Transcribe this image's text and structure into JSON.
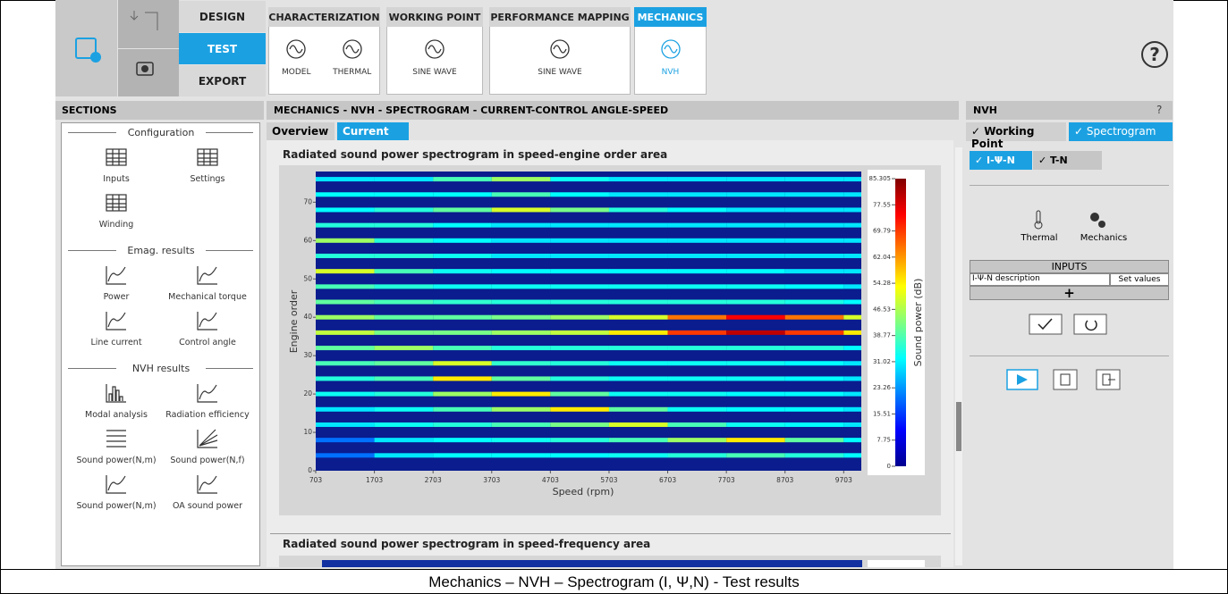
{
  "toolbar": {
    "modes": [
      "DESIGN",
      "TEST",
      "EXPORT"
    ],
    "tabs": [
      {
        "title": "CHARACTERIZATION",
        "items": [
          "MODEL",
          "THERMAL"
        ]
      },
      {
        "title": "WORKING POINT",
        "items": [
          "SINE WAVE"
        ]
      },
      {
        "title": "PERFORMANCE MAPPING",
        "items": [
          "SINE WAVE"
        ]
      },
      {
        "title": "MECHANICS",
        "items": [
          "NVH"
        ]
      }
    ],
    "help": "?"
  },
  "sections": {
    "title": "SECTIONS",
    "groups": [
      {
        "title": "Configuration",
        "items": [
          "Inputs",
          "Settings",
          "Winding"
        ]
      },
      {
        "title": "Emag. results",
        "items": [
          "Power",
          "Mechanical torque",
          "Line current",
          "Control angle"
        ]
      },
      {
        "title": "NVH results",
        "items": [
          "Modal analysis",
          "Radiation efficiency",
          "Sound power(N,m)",
          "Sound power(N,f)",
          "Sound power(N,m)",
          "OA sound power"
        ]
      }
    ]
  },
  "main": {
    "title": "MECHANICS - NVH - SPECTROGRAM - CURRENT-CONTROL ANGLE-SPEED",
    "tabs": [
      "Overview",
      "Current"
    ],
    "second_chart_title": "Radiated sound power spectrogram in speed-frequency area"
  },
  "chart_data": {
    "type": "heatmap",
    "title": "Radiated sound power spectrogram in speed-engine order area",
    "x_label": "Speed (rpm)",
    "y_label": "Engine order",
    "colorbar_label": "Sound power (dB)",
    "xlim": [
      703,
      10003
    ],
    "xticks": [
      703,
      1703,
      2703,
      3703,
      4703,
      5703,
      6703,
      7703,
      8703,
      9703
    ],
    "ylim": [
      0,
      78
    ],
    "yticks": [
      0,
      10,
      20,
      30,
      40,
      50,
      60,
      70
    ],
    "colorbar_lim": [
      0,
      85.305
    ],
    "colorbar_ticks": [
      0,
      7.75,
      15.51,
      23.26,
      31.02,
      38.77,
      46.53,
      54.28,
      62.04,
      69.79,
      77.55,
      85.305
    ],
    "x": [
      703,
      1703,
      2703,
      3703,
      4703,
      5703,
      6703,
      7703,
      8703,
      9703
    ],
    "orders": [
      76,
      72,
      68,
      64,
      60,
      56,
      52,
      48,
      44,
      40,
      36,
      32,
      28,
      24,
      20,
      16,
      12,
      8,
      4
    ],
    "values": [
      [
        30,
        30,
        38,
        45,
        33,
        30,
        30,
        30,
        30,
        30
      ],
      [
        32,
        32,
        32,
        38,
        32,
        30,
        30,
        30,
        30,
        30
      ],
      [
        32,
        35,
        40,
        50,
        42,
        35,
        32,
        30,
        30,
        30
      ],
      [
        35,
        35,
        32,
        30,
        30,
        30,
        30,
        30,
        30,
        30
      ],
      [
        45,
        35,
        32,
        30,
        30,
        30,
        30,
        30,
        30,
        30
      ],
      [
        35,
        35,
        33,
        30,
        30,
        30,
        30,
        30,
        30,
        30
      ],
      [
        50,
        38,
        33,
        32,
        32,
        32,
        32,
        32,
        30,
        30
      ],
      [
        38,
        35,
        33,
        33,
        33,
        33,
        33,
        33,
        32,
        30
      ],
      [
        40,
        38,
        36,
        35,
        35,
        35,
        35,
        35,
        34,
        32
      ],
      [
        45,
        40,
        40,
        42,
        45,
        50,
        65,
        75,
        65,
        50
      ],
      [
        48,
        42,
        42,
        45,
        48,
        55,
        70,
        80,
        70,
        55
      ],
      [
        40,
        45,
        38,
        35,
        35,
        35,
        35,
        35,
        35,
        32
      ],
      [
        38,
        40,
        50,
        36,
        35,
        33,
        33,
        33,
        32,
        30
      ],
      [
        35,
        38,
        55,
        40,
        35,
        33,
        33,
        33,
        32,
        30
      ],
      [
        33,
        35,
        45,
        55,
        40,
        33,
        33,
        32,
        32,
        30
      ],
      [
        30,
        33,
        38,
        45,
        55,
        40,
        33,
        32,
        32,
        30
      ],
      [
        30,
        33,
        35,
        38,
        42,
        50,
        38,
        33,
        32,
        30
      ],
      [
        20,
        30,
        32,
        33,
        35,
        38,
        45,
        55,
        40,
        32
      ],
      [
        20,
        30,
        32,
        32,
        32,
        33,
        35,
        38,
        35,
        32
      ]
    ]
  },
  "nvh": {
    "title": "NVH",
    "help": "?",
    "tabs": [
      "✓ Working Point",
      "✓ Spectrogram"
    ],
    "subtabs": [
      "✓ I-Ψ-N",
      "✓ T-N"
    ],
    "tools": [
      "Thermal",
      "Mechanics"
    ],
    "inputs": {
      "title": "INPUTS",
      "row": [
        "I-Ψ-N description",
        "Set values"
      ],
      "add": "+"
    }
  },
  "caption": "Mechanics – NVH – Spectrogram (I, Ψ,N) - Test results"
}
